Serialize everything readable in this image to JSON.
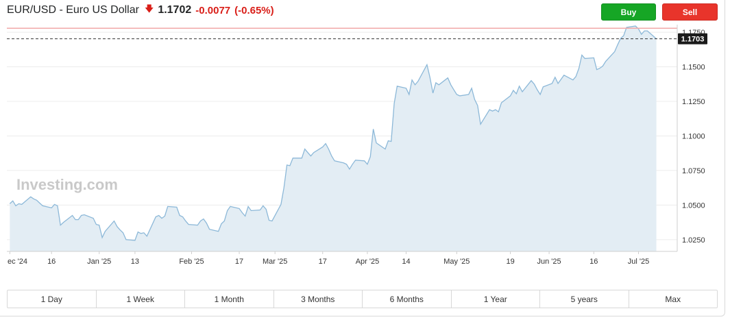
{
  "header": {
    "title": "EUR/USD - Euro US Dollar",
    "price": "1.1702",
    "change": "-0.0077",
    "change_pct": "(-0.65%)",
    "direction_icon": "arrow-down-icon"
  },
  "buttons": {
    "buy": "Buy",
    "sell": "Sell"
  },
  "watermark": "Investing.com",
  "current_label": "1.1703",
  "colors": {
    "line": "#8cb8d8",
    "area": "#e3edf4",
    "down": "#d91e18",
    "buy": "#16a625",
    "sell": "#e8342b",
    "ref_line": "#f2a8a8"
  },
  "periods": [
    "1 Day",
    "1 Week",
    "1 Month",
    "3 Months",
    "6 Months",
    "1 Year",
    "5 years",
    "Max"
  ],
  "chart_data": {
    "type": "area",
    "title": "",
    "xlabel": "",
    "ylabel": "",
    "ylim": [
      1.0165,
      1.1805
    ],
    "grid": true,
    "y_ticks": [
      "1.1750",
      "1.1500",
      "1.1250",
      "1.1000",
      "1.0750",
      "1.0500",
      "1.0250"
    ],
    "y_tick_values": [
      1.175,
      1.15,
      1.125,
      1.1,
      1.075,
      1.05,
      1.025
    ],
    "x_ticks": [
      "ec '24",
      "16",
      "Jan '25",
      "13",
      "Feb '25",
      "17",
      "Mar '25",
      "17",
      "Apr '25",
      "14",
      "May '25",
      "19",
      "Jun '25",
      "16",
      "Jul '25"
    ],
    "x_tick_dates": [
      "2024-12-02",
      "2024-12-16",
      "2025-01-01",
      "2025-01-13",
      "2025-02-01",
      "2025-02-17",
      "2025-03-01",
      "2025-03-17",
      "2025-04-01",
      "2025-04-14",
      "2025-05-01",
      "2025-05-19",
      "2025-06-01",
      "2025-06-16",
      "2025-07-01"
    ],
    "reference_line": 1.1779,
    "current_value": 1.1703,
    "series": [
      {
        "x": [
          "2024-12-02",
          "2024-12-03",
          "2024-12-04",
          "2024-12-05",
          "2024-12-06",
          "2024-12-09",
          "2024-12-10",
          "2024-12-11",
          "2024-12-12",
          "2024-12-13",
          "2024-12-16",
          "2024-12-17",
          "2024-12-18",
          "2024-12-19",
          "2024-12-20",
          "2024-12-23",
          "2024-12-24",
          "2024-12-25",
          "2024-12-26",
          "2024-12-27",
          "2024-12-30",
          "2024-12-31",
          "2025-01-01",
          "2025-01-02",
          "2025-01-03",
          "2025-01-06",
          "2025-01-07",
          "2025-01-08",
          "2025-01-09",
          "2025-01-10",
          "2025-01-13",
          "2025-01-14",
          "2025-01-15",
          "2025-01-16",
          "2025-01-17",
          "2025-01-20",
          "2025-01-21",
          "2025-01-22",
          "2025-01-23",
          "2025-01-24",
          "2025-01-27",
          "2025-01-28",
          "2025-01-29",
          "2025-01-30",
          "2025-01-31",
          "2025-02-03",
          "2025-02-04",
          "2025-02-05",
          "2025-02-06",
          "2025-02-07",
          "2025-02-10",
          "2025-02-11",
          "2025-02-12",
          "2025-02-13",
          "2025-02-14",
          "2025-02-17",
          "2025-02-18",
          "2025-02-19",
          "2025-02-20",
          "2025-02-21",
          "2025-02-24",
          "2025-02-25",
          "2025-02-26",
          "2025-02-27",
          "2025-02-28",
          "2025-03-03",
          "2025-03-04",
          "2025-03-05",
          "2025-03-06",
          "2025-03-07",
          "2025-03-10",
          "2025-03-11",
          "2025-03-12",
          "2025-03-13",
          "2025-03-14",
          "2025-03-17",
          "2025-03-18",
          "2025-03-19",
          "2025-03-20",
          "2025-03-21",
          "2025-03-24",
          "2025-03-25",
          "2025-03-26",
          "2025-03-27",
          "2025-03-28",
          "2025-03-31",
          "2025-04-01",
          "2025-04-02",
          "2025-04-03",
          "2025-04-04",
          "2025-04-07",
          "2025-04-08",
          "2025-04-09",
          "2025-04-10",
          "2025-04-11",
          "2025-04-14",
          "2025-04-15",
          "2025-04-16",
          "2025-04-17",
          "2025-04-18",
          "2025-04-21",
          "2025-04-22",
          "2025-04-23",
          "2025-04-24",
          "2025-04-25",
          "2025-04-28",
          "2025-04-29",
          "2025-04-30",
          "2025-05-01",
          "2025-05-02",
          "2025-05-05",
          "2025-05-06",
          "2025-05-07",
          "2025-05-08",
          "2025-05-09",
          "2025-05-12",
          "2025-05-13",
          "2025-05-14",
          "2025-05-15",
          "2025-05-16",
          "2025-05-19",
          "2025-05-20",
          "2025-05-21",
          "2025-05-22",
          "2025-05-23",
          "2025-05-26",
          "2025-05-27",
          "2025-05-28",
          "2025-05-29",
          "2025-05-30",
          "2025-06-02",
          "2025-06-03",
          "2025-06-04",
          "2025-06-05",
          "2025-06-06",
          "2025-06-09",
          "2025-06-10",
          "2025-06-11",
          "2025-06-12",
          "2025-06-13",
          "2025-06-16",
          "2025-06-17",
          "2025-06-18",
          "2025-06-19",
          "2025-06-20",
          "2025-06-23",
          "2025-06-24",
          "2025-06-25",
          "2025-06-26",
          "2025-06-27",
          "2025-06-30",
          "2025-07-01",
          "2025-07-02",
          "2025-07-03",
          "2025-07-04",
          "2025-07-07"
        ],
        "values": [
          1.051,
          1.053,
          1.0495,
          1.051,
          1.0505,
          1.056,
          1.0545,
          1.0535,
          1.0515,
          1.0495,
          1.048,
          1.0505,
          1.0495,
          1.0355,
          1.0375,
          1.0425,
          1.0395,
          1.0395,
          1.0425,
          1.043,
          1.0405,
          1.036,
          1.0355,
          1.0265,
          1.031,
          1.0385,
          1.0345,
          1.032,
          1.03,
          1.025,
          1.0245,
          1.0305,
          1.0295,
          1.03,
          1.0275,
          1.0415,
          1.0425,
          1.0405,
          1.042,
          1.049,
          1.0485,
          1.0425,
          1.0415,
          1.0385,
          1.036,
          1.0355,
          1.0385,
          1.04,
          1.037,
          1.0325,
          1.031,
          1.0365,
          1.0385,
          1.046,
          1.049,
          1.0475,
          1.0445,
          1.042,
          1.049,
          1.046,
          1.0465,
          1.0495,
          1.047,
          1.039,
          1.0385,
          1.0505,
          1.0625,
          1.079,
          1.0785,
          1.084,
          1.084,
          1.0905,
          1.088,
          1.0855,
          1.088,
          1.092,
          1.0945,
          1.0905,
          1.0855,
          1.082,
          1.0805,
          1.0795,
          1.076,
          1.0795,
          1.0825,
          1.082,
          1.0795,
          1.085,
          1.105,
          1.095,
          1.0905,
          1.0965,
          1.096,
          1.1235,
          1.136,
          1.1345,
          1.13,
          1.1405,
          1.137,
          1.1395,
          1.1515,
          1.1425,
          1.131,
          1.1385,
          1.137,
          1.142,
          1.137,
          1.1335,
          1.13,
          1.129,
          1.13,
          1.1345,
          1.1265,
          1.122,
          1.1085,
          1.119,
          1.118,
          1.119,
          1.1175,
          1.124,
          1.129,
          1.133,
          1.1305,
          1.136,
          1.132,
          1.14,
          1.1375,
          1.1335,
          1.13,
          1.1355,
          1.138,
          1.1425,
          1.138,
          1.141,
          1.144,
          1.1405,
          1.143,
          1.149,
          1.1585,
          1.156,
          1.1565,
          1.148,
          1.149,
          1.1505,
          1.154,
          1.161,
          1.166,
          1.1705,
          1.1725,
          1.1785,
          1.1795,
          1.1775,
          1.1735,
          1.176,
          1.176,
          1.1703
        ]
      }
    ]
  }
}
